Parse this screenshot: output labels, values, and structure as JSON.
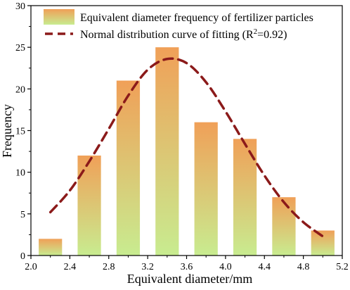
{
  "chart_data": {
    "type": "bar",
    "xlabel": "Equivalent diameter/mm",
    "ylabel": "Frequency",
    "xlim": [
      2.0,
      5.2
    ],
    "ylim": [
      0,
      30
    ],
    "x_ticks": [
      "2.0",
      "2.4",
      "2.8",
      "3.2",
      "3.6",
      "4.0",
      "4.4",
      "4.8",
      "5.2"
    ],
    "y_ticks": [
      "0",
      "5",
      "10",
      "15",
      "20",
      "25",
      "30"
    ],
    "grid": false,
    "legend_position": "top-left",
    "bar_width": 0.24,
    "series": [
      {
        "name": "Equivalent diameter frequency of fertilizer particles",
        "kind": "bar",
        "x": [
          2.2,
          2.6,
          3.0,
          3.4,
          3.8,
          4.2,
          4.6,
          5.0
        ],
        "values": [
          2,
          12,
          21,
          25,
          16,
          14,
          7,
          3
        ],
        "gradient_top": "#f0a058",
        "gradient_bottom": "#c8ec90"
      },
      {
        "name_prefix": "Normal distribution curve of fitting (R",
        "name_sup": "2",
        "name_suffix": "=0.92)",
        "kind": "line",
        "style": "dashed",
        "color": "#8b1a1a",
        "x": [
          2.2,
          2.4,
          2.6,
          2.8,
          3.0,
          3.2,
          3.4,
          3.6,
          3.8,
          4.0,
          4.2,
          4.4,
          4.6,
          4.8,
          5.0
        ],
        "y": [
          5.2,
          7.8,
          11.3,
          15.2,
          19.2,
          22.3,
          23.6,
          23.1,
          20.8,
          17.3,
          13.4,
          9.6,
          6.4,
          4.0,
          2.3
        ]
      }
    ]
  }
}
